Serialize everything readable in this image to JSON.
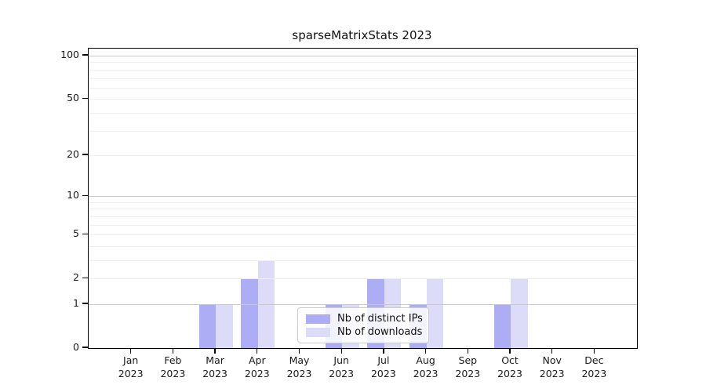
{
  "title": "sparseMatrixStats 2023",
  "legend": {
    "items": [
      {
        "label": "Nb of distinct IPs",
        "color": "#acadf4"
      },
      {
        "label": "Nb of downloads",
        "color": "#dcdcf8"
      }
    ]
  },
  "y_axis": {
    "tick_values": [
      0,
      1,
      2,
      5,
      10,
      20,
      50,
      100
    ]
  },
  "x_axis": {
    "months": [
      {
        "label": "Jan",
        "year": "2023"
      },
      {
        "label": "Feb",
        "year": "2023"
      },
      {
        "label": "Mar",
        "year": "2023"
      },
      {
        "label": "Apr",
        "year": "2023"
      },
      {
        "label": "May",
        "year": "2023"
      },
      {
        "label": "Jun",
        "year": "2023"
      },
      {
        "label": "Jul",
        "year": "2023"
      },
      {
        "label": "Aug",
        "year": "2023"
      },
      {
        "label": "Sep",
        "year": "2023"
      },
      {
        "label": "Oct",
        "year": "2023"
      },
      {
        "label": "Nov",
        "year": "2023"
      },
      {
        "label": "Dec",
        "year": "2023"
      }
    ]
  },
  "chart_data": {
    "type": "bar",
    "title": "sparseMatrixStats 2023",
    "categories": [
      "Jan 2023",
      "Feb 2023",
      "Mar 2023",
      "Apr 2023",
      "May 2023",
      "Jun 2023",
      "Jul 2023",
      "Aug 2023",
      "Sep 2023",
      "Oct 2023",
      "Nov 2023",
      "Dec 2023"
    ],
    "series": [
      {
        "name": "Nb of distinct IPs",
        "color": "#acadf4",
        "values": [
          0,
          0,
          1,
          2,
          0,
          1,
          2,
          1,
          0,
          1,
          0,
          0
        ]
      },
      {
        "name": "Nb of downloads",
        "color": "#dcdcf8",
        "values": [
          0,
          0,
          1,
          3,
          0,
          1,
          2,
          2,
          0,
          2,
          0,
          0
        ]
      }
    ],
    "xlabel": "",
    "ylabel": "",
    "yscale": "log1p",
    "ylim": [
      0,
      112
    ],
    "y_major_ticks": [
      0,
      1,
      2,
      5,
      10,
      20,
      50,
      100
    ],
    "y_major_gridlines": [
      1,
      10,
      100
    ],
    "y_minor_gridlines": [
      2,
      3,
      4,
      5,
      6,
      7,
      8,
      9,
      20,
      30,
      40,
      50,
      60,
      70,
      80,
      90
    ],
    "grid": true,
    "legend_position": "lower center inside plot",
    "colors": {
      "major_gridline": "#c9c9c9",
      "minor_gridline": "#efefef",
      "spine": "#000000"
    }
  }
}
